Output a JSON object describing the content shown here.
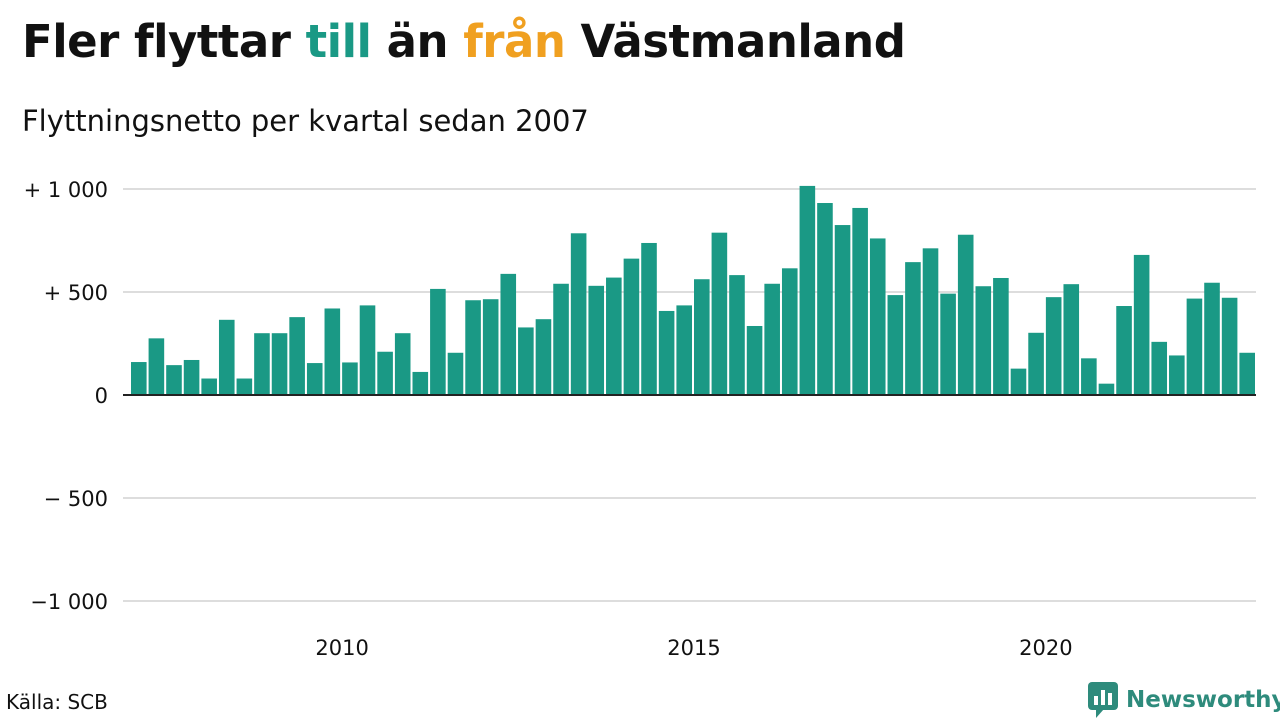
{
  "title": {
    "part1": "Fler flyttar ",
    "highlight1": "till",
    "part2": " än ",
    "highlight2": "från",
    "part3": " Västmanland"
  },
  "subtitle": "Flyttningsnetto per kvartal sedan 2007",
  "source": "Källa: SCB",
  "brand": {
    "name": "Newsworthy",
    "icon": "newsworthy-logo-icon"
  },
  "colors": {
    "bar": "#1a9985",
    "till": "#1a9985",
    "fran": "#f0a020",
    "grid": "#dddddd",
    "baseline": "#222222",
    "brand": "#2e8b7c"
  },
  "chart_data": {
    "type": "bar",
    "title": "Fler flyttar till än från Västmanland",
    "subtitle": "Flyttningsnetto per kvartal sedan 2007",
    "xlabel": "",
    "ylabel": "",
    "ylim": [
      -1000,
      1000
    ],
    "grid": true,
    "legend": "none",
    "y_ticks": [
      {
        "value": 1000,
        "label": "+ 1 000"
      },
      {
        "value": 500,
        "label": "+   500"
      },
      {
        "value": 0,
        "label": "0"
      },
      {
        "value": -500,
        "label": "−  500"
      },
      {
        "value": -1000,
        "label": "−1 000"
      }
    ],
    "x_ticks": [
      {
        "value": 2010,
        "label": "2010"
      },
      {
        "value": 2015,
        "label": "2015"
      },
      {
        "value": 2020,
        "label": "2020"
      }
    ],
    "x_start": 2007,
    "values": [
      160,
      275,
      145,
      170,
      80,
      365,
      80,
      300,
      300,
      378,
      155,
      420,
      158,
      435,
      210,
      300,
      112,
      515,
      205,
      460,
      465,
      588,
      328,
      368,
      540,
      785,
      530,
      570,
      662,
      738,
      408,
      435,
      562,
      788,
      582,
      335,
      540,
      615,
      1015,
      932,
      825,
      908,
      760,
      485,
      645,
      712,
      492,
      778,
      528,
      568,
      128,
      302,
      475,
      538,
      178,
      55,
      432,
      680,
      258,
      192,
      468,
      545,
      472,
      205
    ]
  }
}
